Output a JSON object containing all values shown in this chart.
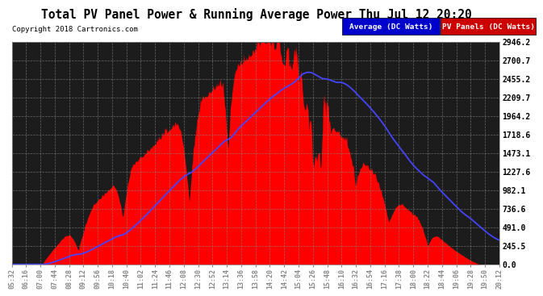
{
  "title": "Total PV Panel Power & Running Average Power Thu Jul 12 20:20",
  "copyright": "Copyright 2018 Cartronics.com",
  "legend_avg": "Average (DC Watts)",
  "legend_pv": "PV Panels (DC Watts)",
  "ylabel_ticks": [
    0.0,
    245.5,
    491.0,
    736.6,
    982.1,
    1227.6,
    1473.1,
    1718.6,
    1964.2,
    2209.7,
    2455.2,
    2700.7,
    2946.2
  ],
  "ymax": 2946.2,
  "ymin": 0.0,
  "fill_color": "#ff0000",
  "line_color": "#4444ff",
  "x_labels": [
    "05:32",
    "06:16",
    "07:00",
    "07:44",
    "08:28",
    "09:12",
    "09:56",
    "10:18",
    "10:40",
    "11:02",
    "11:24",
    "11:46",
    "12:08",
    "12:30",
    "12:52",
    "13:14",
    "13:36",
    "13:58",
    "14:20",
    "14:42",
    "15:04",
    "15:26",
    "15:48",
    "16:10",
    "16:32",
    "16:54",
    "17:16",
    "17:38",
    "18:00",
    "18:22",
    "18:44",
    "19:06",
    "19:28",
    "19:50",
    "20:12"
  ]
}
